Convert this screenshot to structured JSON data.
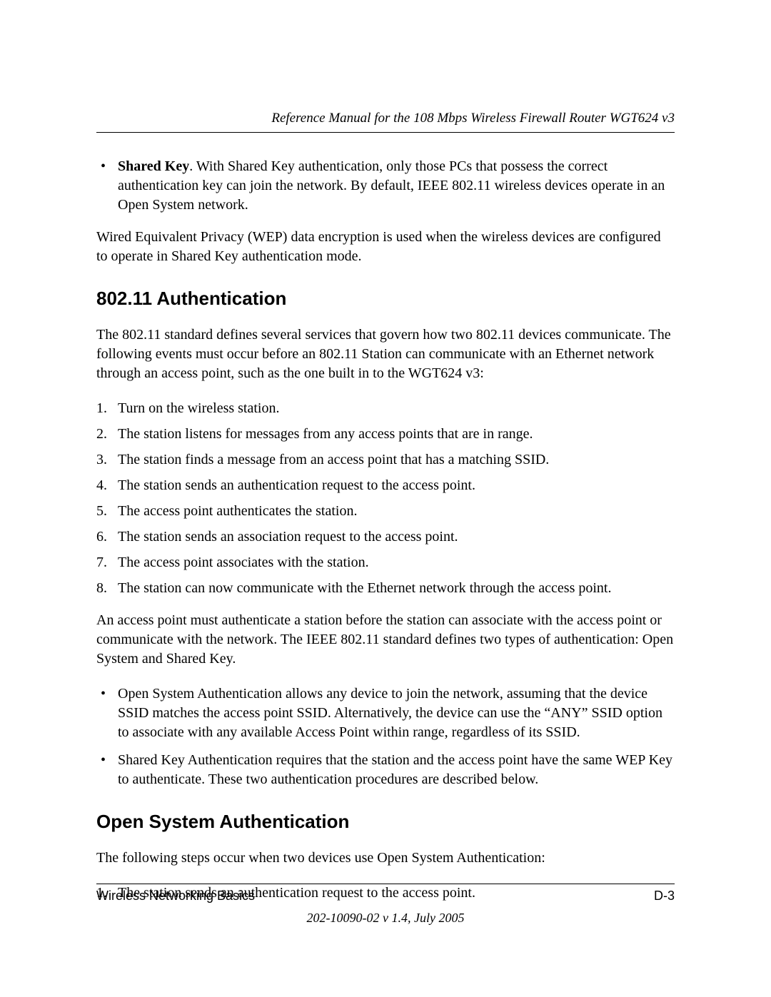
{
  "header": {
    "title": "Reference Manual for the 108 Mbps Wireless Firewall Router WGT624 v3"
  },
  "bullet1": {
    "lead_bold": "Shared Key",
    "text": ". With Shared Key authentication, only those PCs that possess the correct authentication key can join the network. By default, IEEE 802.11 wireless devices operate in an Open System network."
  },
  "para_wep": "Wired Equivalent Privacy (WEP) data encryption is used when the wireless devices are configured to operate in Shared Key authentication mode.",
  "heading_auth": "802.11 Authentication",
  "para_auth_intro": "The 802.11 standard defines several services that govern how two 802.11 devices communicate. The following events must occur before an 802.11 Station can communicate with an Ethernet network through an access point, such as the one built in to the WGT624 v3:",
  "steps": [
    "Turn on the wireless station.",
    "The station listens for messages from any access points that are in range.",
    "The station finds a message from an access point that has a matching SSID.",
    "The station sends an authentication request to the access point.",
    "The access point authenticates the station.",
    "The station sends an association request to the access point.",
    "The access point associates with the station.",
    "The station can now communicate with the Ethernet network through the access point."
  ],
  "para_after_steps": "An access point must authenticate a station before the station can associate with the access point or communicate with the network. The IEEE 802.11 standard defines two types of authentication: Open System and Shared Key.",
  "auth_types": [
    "Open System Authentication allows any device to join the network, assuming that the device SSID matches the access point SSID. Alternatively, the device can use the “ANY” SSID option to associate with any available Access Point within range, regardless of its SSID.",
    "Shared Key Authentication requires that the station and the access point have the same WEP Key to authenticate. These two authentication procedures are described below."
  ],
  "heading_open": "Open System Authentication",
  "para_open_intro": "The following steps occur when two devices use Open System Authentication:",
  "open_steps": [
    "The station sends an authentication request to the access point."
  ],
  "footer": {
    "left": "Wireless Networking Basics",
    "right": "D-3",
    "version": "202-10090-02 v 1.4, July 2005"
  }
}
